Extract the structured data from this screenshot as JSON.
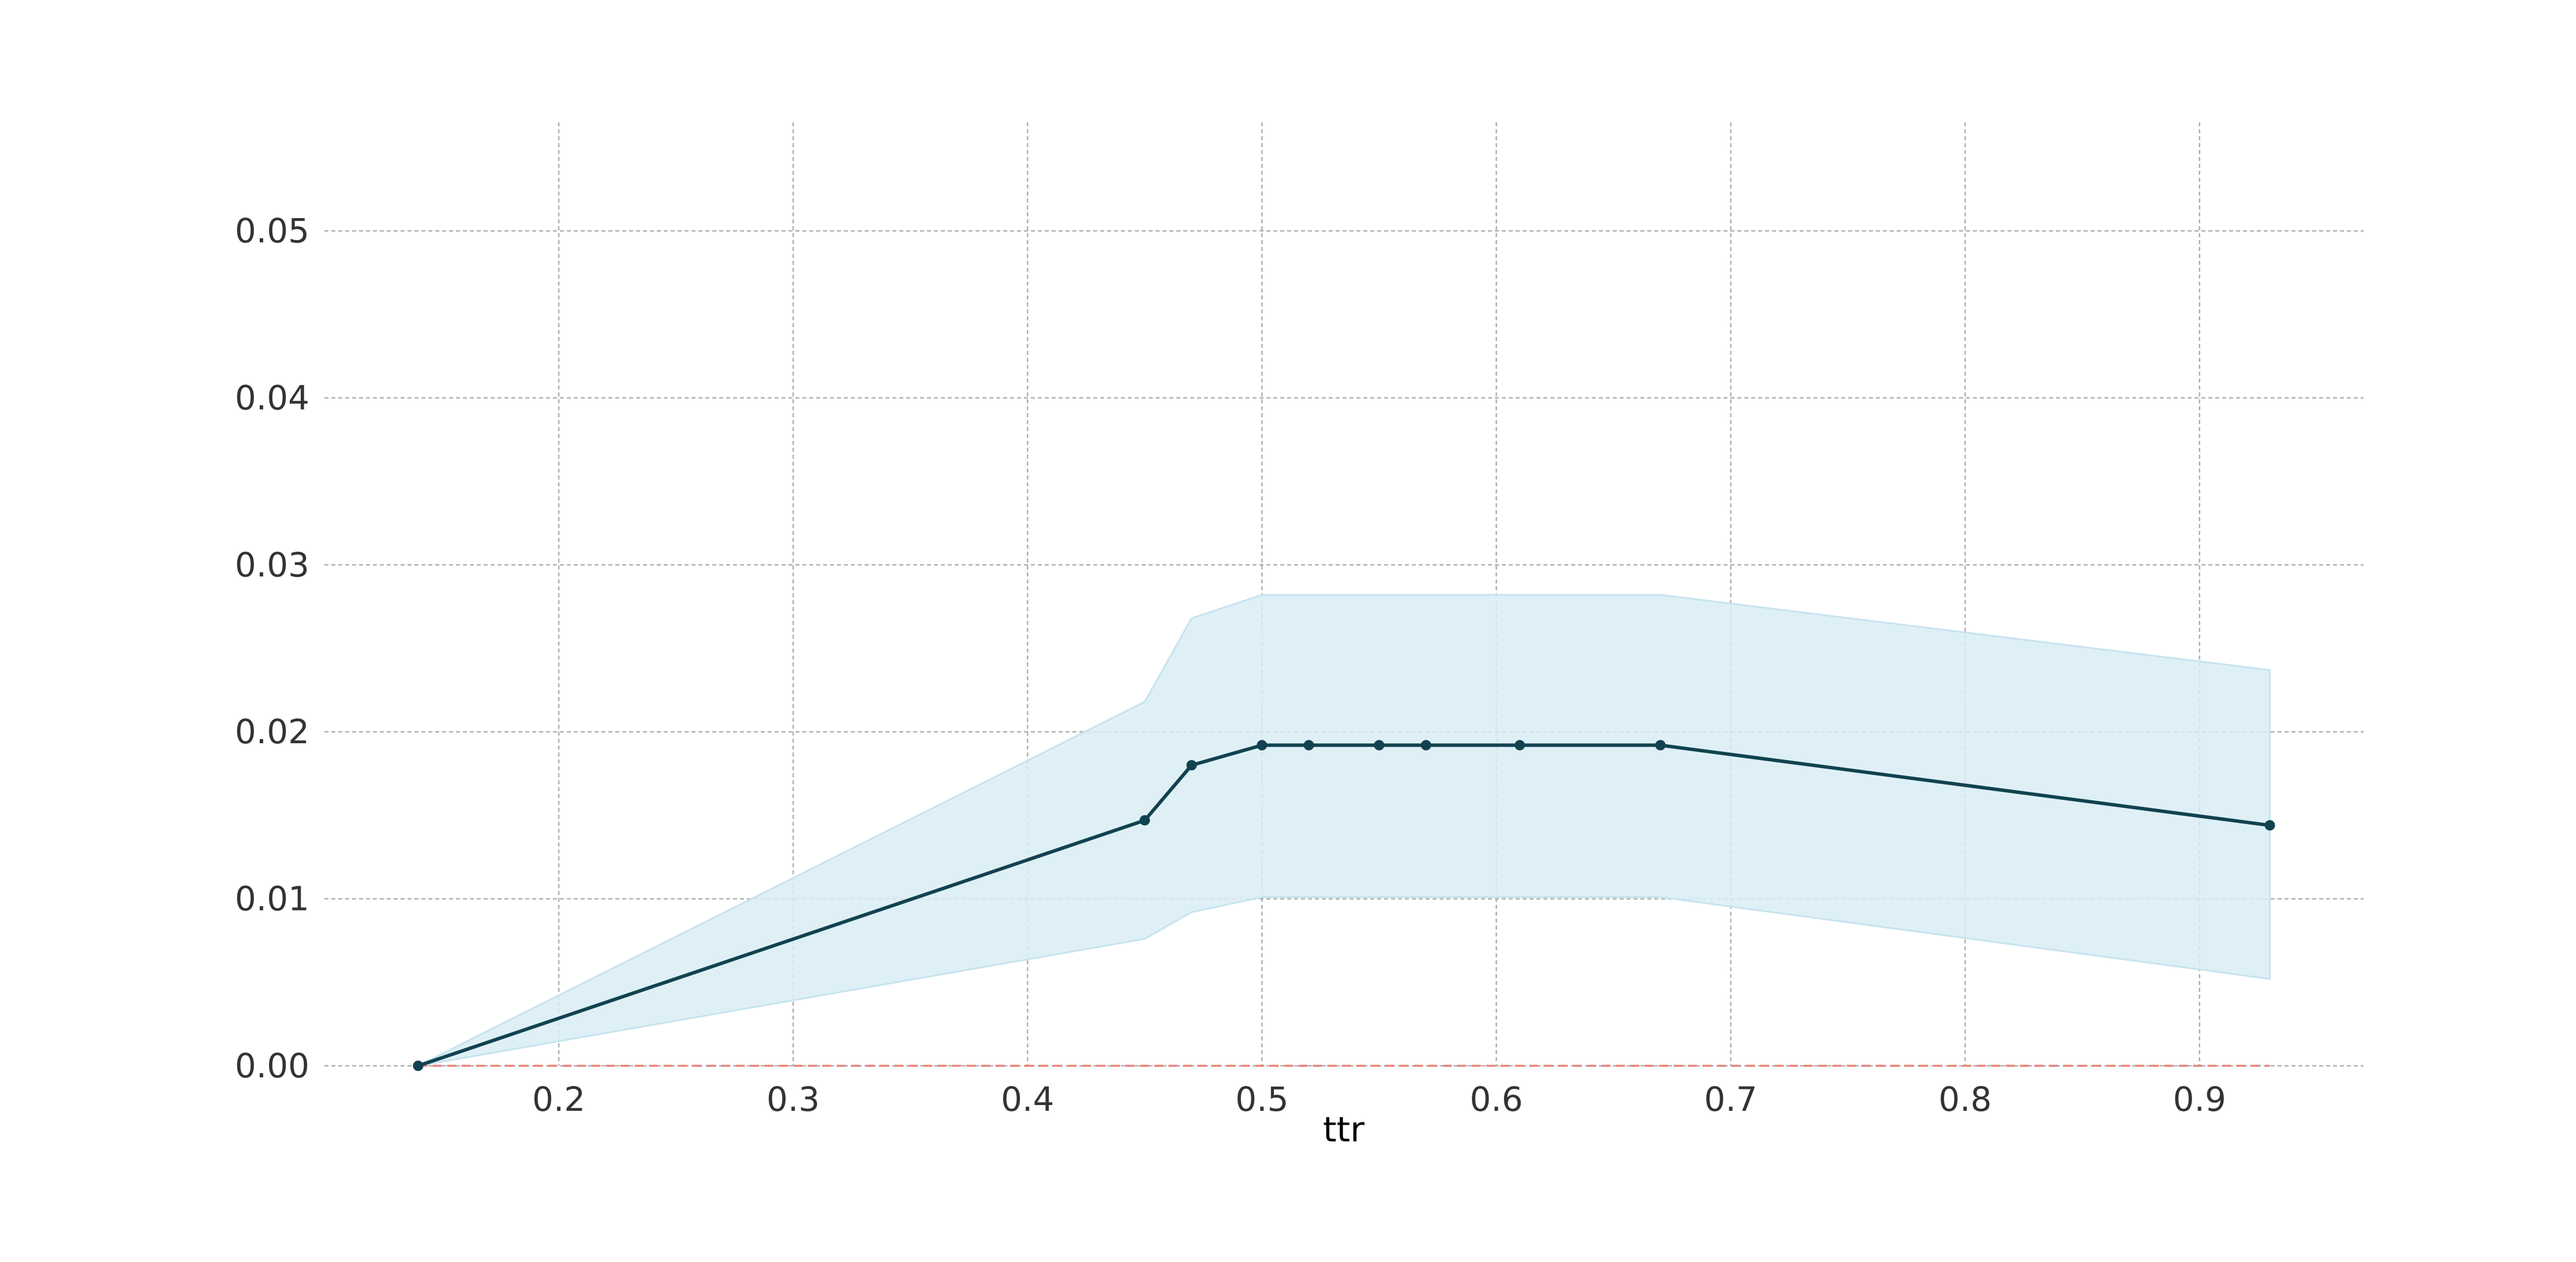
{
  "chart_data": {
    "type": "line",
    "title": "",
    "xlabel": "ttr",
    "ylabel": "",
    "xlim": [
      0.1,
      0.97
    ],
    "ylim": [
      0.0,
      0.0565
    ],
    "grid": true,
    "x_ticks": [
      0.2,
      0.3,
      0.4,
      0.5,
      0.6,
      0.7,
      0.8,
      0.9
    ],
    "y_ticks": [
      0.0,
      0.01,
      0.02,
      0.03,
      0.04,
      0.05
    ],
    "x_tick_labels": [
      "0.2",
      "0.3",
      "0.4",
      "0.5",
      "0.6",
      "0.7",
      "0.8",
      "0.9"
    ],
    "y_tick_labels": [
      "0.00",
      "0.01",
      "0.02",
      "0.03",
      "0.04",
      "0.05"
    ],
    "reference_line": {
      "y": 0.0,
      "color": "#e8847c",
      "style": "dashed"
    },
    "series": [
      {
        "x": [
          0.14,
          0.45,
          0.47,
          0.5,
          0.52,
          0.55,
          0.57,
          0.61,
          0.67,
          0.93
        ],
        "y": [
          0.0,
          0.0147,
          0.018,
          0.0192,
          0.0192,
          0.0192,
          0.0192,
          0.0192,
          0.0192,
          0.0144
        ],
        "lower": [
          0.0,
          0.0076,
          0.0092,
          0.0101,
          0.0101,
          0.0101,
          0.0101,
          0.0101,
          0.0101,
          0.0052
        ],
        "upper": [
          0.0,
          0.0218,
          0.0268,
          0.0282,
          0.0282,
          0.0282,
          0.0282,
          0.0282,
          0.0282,
          0.0237
        ],
        "line_color": "#12424f",
        "band_color": "#d8edf5"
      }
    ]
  }
}
